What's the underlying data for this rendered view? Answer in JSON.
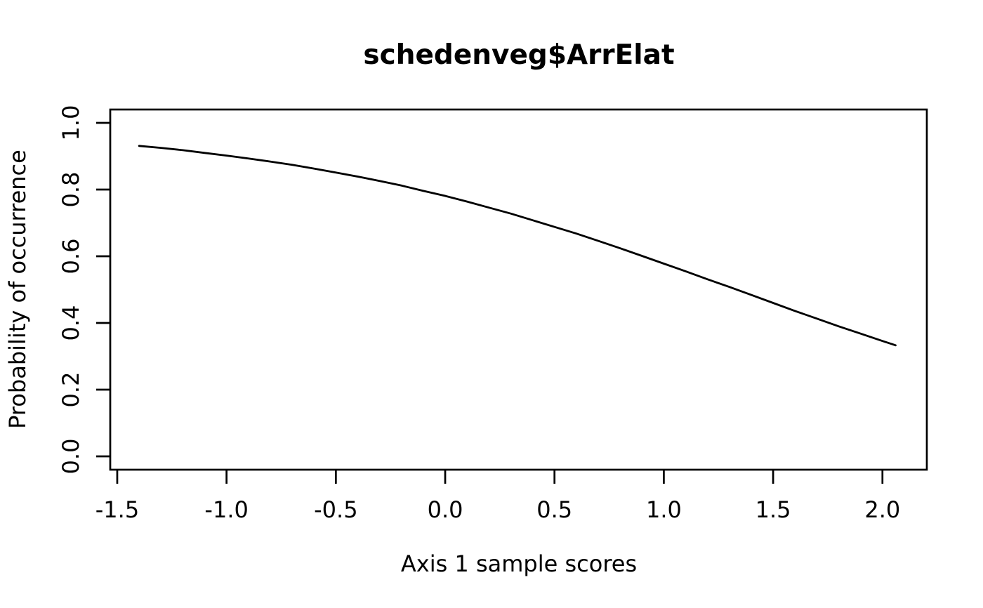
{
  "chart_data": {
    "type": "line",
    "title": "schedenveg$ArrElat",
    "xlabel": "Axis 1 sample scores",
    "ylabel": "Probability of occurrence",
    "xlim": [
      -1.532,
      2.203
    ],
    "ylim": [
      -0.04,
      1.04
    ],
    "grid": false,
    "legend": "none",
    "colors": {
      "line": "#000000",
      "axis": "#000000",
      "text": "#000000",
      "background": "#ffffff"
    },
    "x_ticks": {
      "values": [
        -1.5,
        -1.0,
        -0.5,
        0.0,
        0.5,
        1.0,
        1.5,
        2.0
      ],
      "labels": [
        "-1.5",
        "-1.0",
        "-0.5",
        "0.0",
        "0.5",
        "1.0",
        "1.5",
        "2.0"
      ]
    },
    "y_ticks": {
      "values": [
        0.0,
        0.2,
        0.4,
        0.6,
        0.8,
        1.0
      ],
      "labels": [
        "0.0",
        "0.2",
        "0.4",
        "0.6",
        "0.8",
        "1.0"
      ]
    },
    "series": [
      {
        "name": "fitted-probability-curve",
        "x": [
          -1.4,
          -1.3,
          -1.2,
          -1.1,
          -1.0,
          -0.9,
          -0.8,
          -0.7,
          -0.6,
          -0.5,
          -0.4,
          -0.3,
          -0.2,
          -0.1,
          0.0,
          0.1,
          0.2,
          0.3,
          0.4,
          0.5,
          0.6,
          0.7,
          0.8,
          0.9,
          1.0,
          1.1,
          1.2,
          1.3,
          1.4,
          1.5,
          1.6,
          1.7,
          1.8,
          1.9,
          2.0,
          2.06
        ],
        "y": [
          0.931,
          0.925,
          0.918,
          0.91,
          0.902,
          0.893,
          0.884,
          0.874,
          0.863,
          0.851,
          0.839,
          0.826,
          0.812,
          0.796,
          0.781,
          0.764,
          0.746,
          0.728,
          0.708,
          0.688,
          0.668,
          0.646,
          0.624,
          0.601,
          0.578,
          0.555,
          0.531,
          0.508,
          0.484,
          0.46,
          0.436,
          0.413,
          0.39,
          0.368,
          0.346,
          0.333
        ]
      }
    ]
  }
}
